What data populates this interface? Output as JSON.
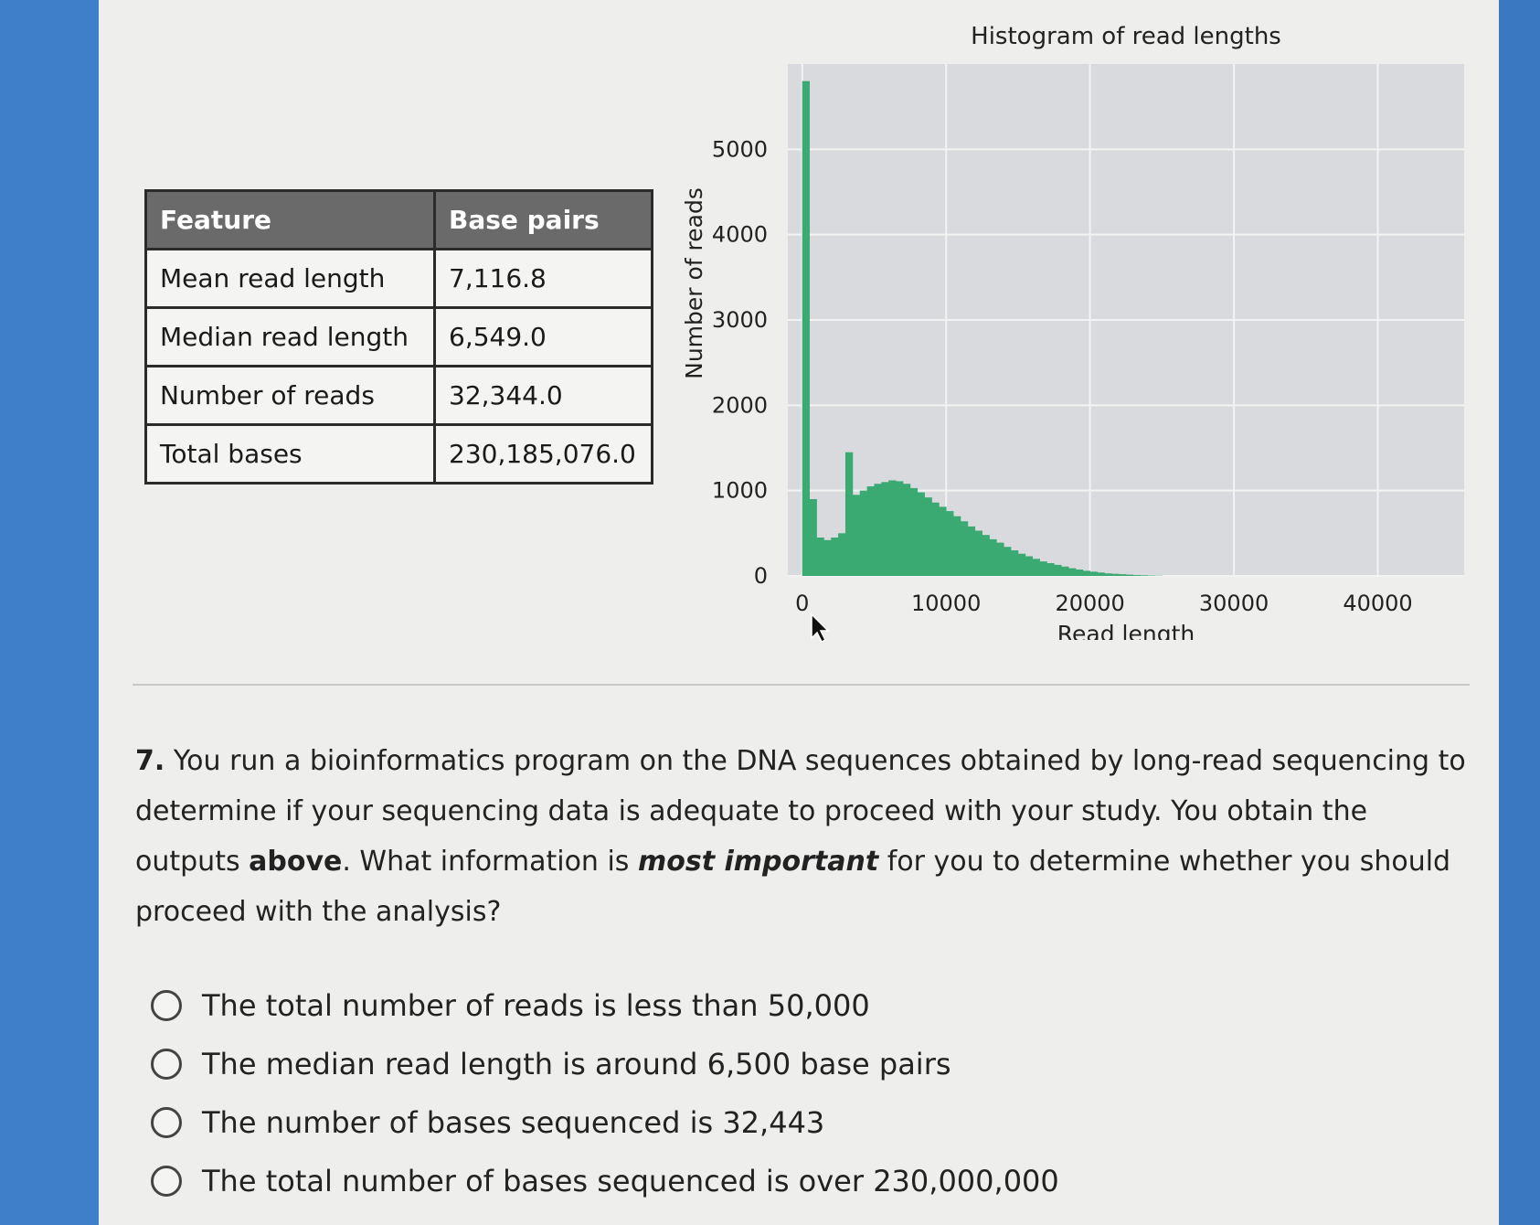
{
  "table": {
    "headers": [
      "Feature",
      "Base pairs"
    ],
    "rows": [
      [
        "Mean read length",
        "7,116.8"
      ],
      [
        "Median read length",
        "6,549.0"
      ],
      [
        "Number of reads",
        "32,344.0"
      ],
      [
        "Total bases",
        "230,185,076.0"
      ]
    ]
  },
  "chart_data": {
    "type": "bar",
    "title": "Histogram of read lengths",
    "xlabel": "Read length",
    "ylabel": "Number of reads",
    "xlim": [
      -1000,
      46000
    ],
    "ylim": [
      0,
      6000
    ],
    "xticks": [
      0,
      10000,
      20000,
      30000,
      40000
    ],
    "yticks": [
      0,
      1000,
      2000,
      3000,
      4000,
      5000
    ],
    "grid": true,
    "bar_color": "#3aaa72",
    "bin_width": 500,
    "bins_start": [
      0,
      500,
      1000,
      1500,
      2000,
      2500,
      3000,
      3500,
      4000,
      4500,
      5000,
      5500,
      6000,
      6500,
      7000,
      7500,
      8000,
      8500,
      9000,
      9500,
      10000,
      10500,
      11000,
      11500,
      12000,
      12500,
      13000,
      13500,
      14000,
      14500,
      15000,
      15500,
      16000,
      16500,
      17000,
      17500,
      18000,
      18500,
      19000,
      19500,
      20000,
      20500,
      21000,
      21500,
      22000,
      22500,
      23000,
      23500,
      24000,
      24500
    ],
    "values": [
      5800,
      900,
      450,
      420,
      450,
      500,
      1450,
      950,
      1000,
      1050,
      1080,
      1100,
      1120,
      1110,
      1080,
      1030,
      980,
      920,
      860,
      810,
      760,
      700,
      640,
      580,
      530,
      480,
      430,
      390,
      340,
      300,
      260,
      230,
      200,
      170,
      150,
      130,
      110,
      90,
      75,
      60,
      50,
      40,
      30,
      25,
      20,
      15,
      10,
      8,
      5,
      3
    ]
  },
  "question": {
    "number": "7.",
    "text_1": " You run a bioinformatics program on the DNA sequences obtained by long-read sequencing to determine if your sequencing data is adequate to proceed with your study. You obtain the outputs ",
    "above": "above",
    "text_2": ". What information is ",
    "emphasis": "most important",
    "text_3": " for you to determine whether you should proceed with the analysis?"
  },
  "options": [
    "The total number of reads is less than 50,000",
    "The median read length is around 6,500 base pairs",
    "The number of bases sequenced is 32,443",
    "The total number of bases sequenced is over 230,000,000"
  ]
}
